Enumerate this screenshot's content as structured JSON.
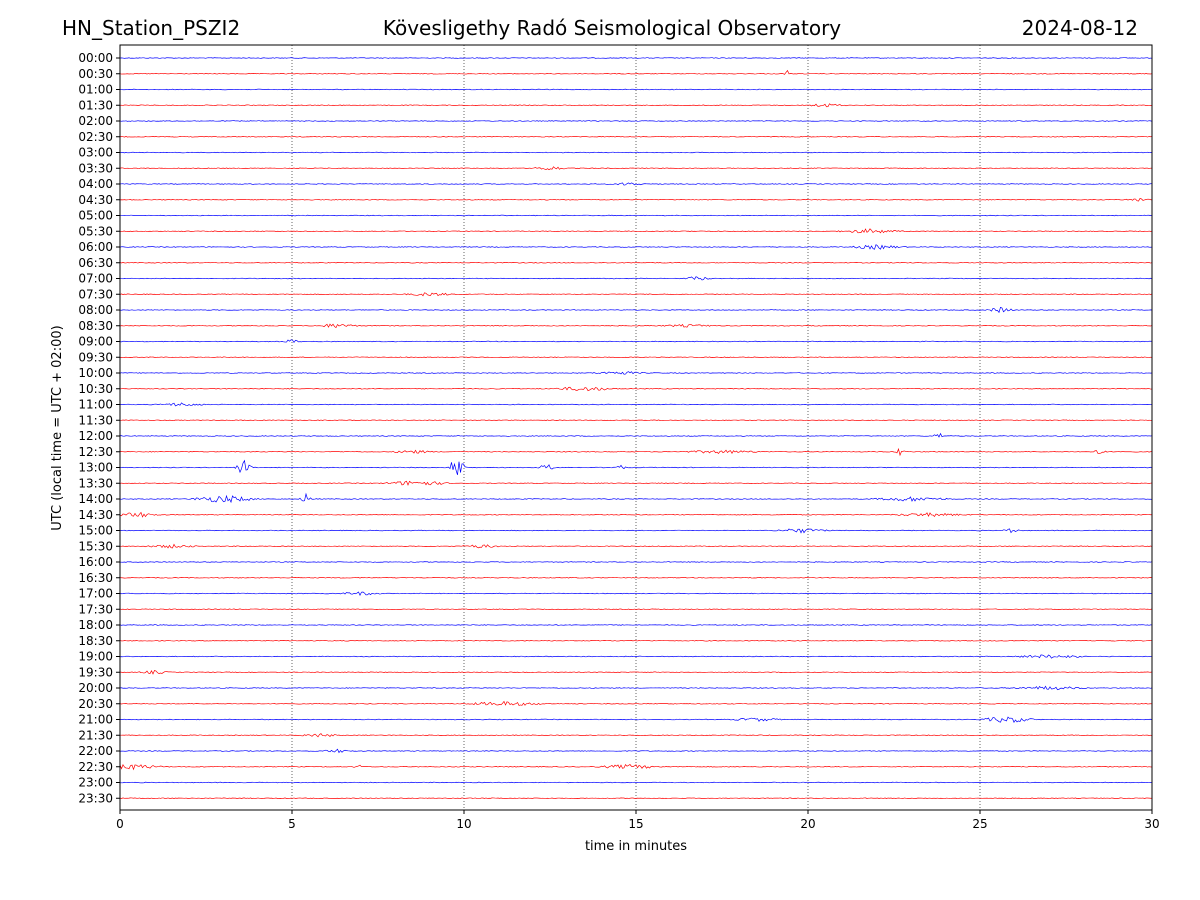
{
  "chart_data": {
    "type": "line",
    "title": {
      "station": "HN_Station_PSZI2",
      "observatory": "Kövesligethy Radó Seismological Observatory",
      "date": "2024-08-12"
    },
    "xlabel": "time in minutes",
    "ylabel": "UTC (local time = UTC + 02:00)",
    "xlim": [
      0,
      30
    ],
    "xticks": [
      0,
      5,
      10,
      15,
      20,
      25,
      30
    ],
    "vertical_gridlines": [
      5,
      10,
      15,
      20,
      25
    ],
    "trace_colors": [
      "#0000ff",
      "#ff0000"
    ],
    "row_labels": [
      "00:00",
      "00:30",
      "01:00",
      "01:30",
      "02:00",
      "02:30",
      "03:00",
      "03:30",
      "04:00",
      "04:30",
      "05:00",
      "05:30",
      "06:00",
      "06:30",
      "07:00",
      "07:30",
      "08:00",
      "08:30",
      "09:00",
      "09:30",
      "10:00",
      "10:30",
      "11:00",
      "11:30",
      "12:00",
      "12:30",
      "13:00",
      "13:30",
      "14:00",
      "14:30",
      "15:00",
      "15:30",
      "16:00",
      "16:30",
      "17:00",
      "17:30",
      "18:00",
      "18:30",
      "19:00",
      "19:30",
      "20:00",
      "20:30",
      "21:00",
      "21:30",
      "22:00",
      "22:30",
      "23:00",
      "23:30"
    ],
    "events": [
      {
        "row": "00:30",
        "minute": 19.4,
        "amplitude": 4,
        "duration": 0.1
      },
      {
        "row": "01:30",
        "minute": 20.5,
        "amplitude": 2,
        "duration": 0.8
      },
      {
        "row": "03:30",
        "minute": 12.5,
        "amplitude": 2.5,
        "duration": 0.6
      },
      {
        "row": "04:00",
        "minute": 14.8,
        "amplitude": 2,
        "duration": 0.6
      },
      {
        "row": "04:30",
        "minute": 29.6,
        "amplitude": 2,
        "duration": 0.5
      },
      {
        "row": "05:30",
        "minute": 21.8,
        "amplitude": 2.5,
        "duration": 1.2
      },
      {
        "row": "06:00",
        "minute": 22.0,
        "amplitude": 2.5,
        "duration": 1.0
      },
      {
        "row": "07:00",
        "minute": 16.8,
        "amplitude": 2.5,
        "duration": 0.5
      },
      {
        "row": "07:30",
        "minute": 9.0,
        "amplitude": 2,
        "duration": 1.0
      },
      {
        "row": "08:00",
        "minute": 25.6,
        "amplitude": 3,
        "duration": 0.5
      },
      {
        "row": "08:30",
        "minute": 6.3,
        "amplitude": 2.5,
        "duration": 0.8
      },
      {
        "row": "08:30",
        "minute": 16.5,
        "amplitude": 1.5,
        "duration": 1.2
      },
      {
        "row": "09:00",
        "minute": 5.0,
        "amplitude": 2.5,
        "duration": 0.3
      },
      {
        "row": "10:00",
        "minute": 14.5,
        "amplitude": 2,
        "duration": 1.0
      },
      {
        "row": "10:30",
        "minute": 13.5,
        "amplitude": 2.5,
        "duration": 1.2
      },
      {
        "row": "11:00",
        "minute": 1.8,
        "amplitude": 2,
        "duration": 1.0
      },
      {
        "row": "12:00",
        "minute": 23.8,
        "amplitude": 4,
        "duration": 0.2
      },
      {
        "row": "12:30",
        "minute": 8.5,
        "amplitude": 2,
        "duration": 0.8
      },
      {
        "row": "12:30",
        "minute": 17.5,
        "amplitude": 2,
        "duration": 1.5
      },
      {
        "row": "12:30",
        "minute": 22.7,
        "amplitude": 5,
        "duration": 0.2
      },
      {
        "row": "12:30",
        "minute": 28.5,
        "amplitude": 5,
        "duration": 0.2
      },
      {
        "row": "13:00",
        "minute": 3.6,
        "amplitude": 9,
        "duration": 0.3
      },
      {
        "row": "13:00",
        "minute": 9.8,
        "amplitude": 12,
        "duration": 0.3
      },
      {
        "row": "13:00",
        "minute": 12.4,
        "amplitude": 4,
        "duration": 0.3
      },
      {
        "row": "13:00",
        "minute": 14.5,
        "amplitude": 3,
        "duration": 0.3
      },
      {
        "row": "13:30",
        "minute": 8.6,
        "amplitude": 3,
        "duration": 1.2
      },
      {
        "row": "14:00",
        "minute": 3.0,
        "amplitude": 4,
        "duration": 1.2
      },
      {
        "row": "14:00",
        "minute": 5.4,
        "amplitude": 6,
        "duration": 0.2
      },
      {
        "row": "14:00",
        "minute": 23.0,
        "amplitude": 2.5,
        "duration": 1.5
      },
      {
        "row": "14:30",
        "minute": 0.5,
        "amplitude": 3,
        "duration": 0.8
      },
      {
        "row": "14:30",
        "minute": 23.5,
        "amplitude": 2,
        "duration": 1.5
      },
      {
        "row": "15:00",
        "minute": 19.8,
        "amplitude": 2.5,
        "duration": 1.0
      },
      {
        "row": "15:00",
        "minute": 25.9,
        "amplitude": 3,
        "duration": 0.3
      },
      {
        "row": "15:30",
        "minute": 1.5,
        "amplitude": 2,
        "duration": 1.0
      },
      {
        "row": "15:30",
        "minute": 10.5,
        "amplitude": 2,
        "duration": 0.8
      },
      {
        "row": "17:00",
        "minute": 7.0,
        "amplitude": 2,
        "duration": 0.8
      },
      {
        "row": "19:00",
        "minute": 27.0,
        "amplitude": 2,
        "duration": 1.5
      },
      {
        "row": "19:30",
        "minute": 1.0,
        "amplitude": 2,
        "duration": 0.6
      },
      {
        "row": "20:00",
        "minute": 27.0,
        "amplitude": 2,
        "duration": 1.5
      },
      {
        "row": "20:30",
        "minute": 11.2,
        "amplitude": 2.5,
        "duration": 1.5
      },
      {
        "row": "21:00",
        "minute": 25.8,
        "amplitude": 3.5,
        "duration": 1.0
      },
      {
        "row": "21:00",
        "minute": 18.5,
        "amplitude": 2,
        "duration": 1.0
      },
      {
        "row": "21:30",
        "minute": 5.8,
        "amplitude": 2,
        "duration": 0.8
      },
      {
        "row": "22:00",
        "minute": 6.3,
        "amplitude": 2,
        "duration": 0.6
      },
      {
        "row": "22:30",
        "minute": 0.3,
        "amplitude": 3,
        "duration": 1.2
      },
      {
        "row": "22:30",
        "minute": 14.8,
        "amplitude": 2.5,
        "duration": 1.2
      },
      {
        "row": "22:30",
        "minute": 6.9,
        "amplitude": 3,
        "duration": 0.2
      }
    ]
  }
}
